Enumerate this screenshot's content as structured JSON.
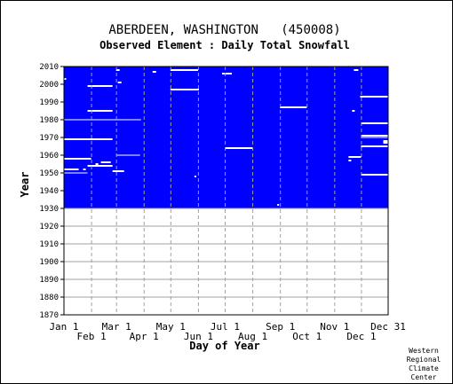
{
  "chart_data": {
    "type": "heatmap",
    "title": "ABERDEEN, WASHINGTON   (450008)",
    "subtitle": "Observed Element : Daily Total Snowfall",
    "xlabel": "Day of Year",
    "ylabel": "Year",
    "xlim": [
      1,
      365
    ],
    "ylim": [
      1870,
      2010
    ],
    "period_of_record": [
      1930,
      2010
    ],
    "colors": {
      "missing": "#ffffff",
      "observed": "#0000ff",
      "grid": "#a0a0a0",
      "frame": "#000000"
    },
    "x_ticks_upper": [
      {
        "label": "Jan 1",
        "day": 1
      },
      {
        "label": "Mar 1",
        "day": 60
      },
      {
        "label": "May 1",
        "day": 121
      },
      {
        "label": "Jul 1",
        "day": 182
      },
      {
        "label": "Sep 1",
        "day": 244
      },
      {
        "label": "Nov 1",
        "day": 305
      },
      {
        "label": "Dec 31",
        "day": 365
      }
    ],
    "x_ticks_lower": [
      {
        "label": "Feb 1",
        "day": 32
      },
      {
        "label": "Apr 1",
        "day": 91
      },
      {
        "label": "Jun 1",
        "day": 152
      },
      {
        "label": "Aug 1",
        "day": 213
      },
      {
        "label": "Oct 1",
        "day": 274
      },
      {
        "label": "Dec 1",
        "day": 335
      }
    ],
    "y_ticks": [
      "2010",
      "2000",
      "1990",
      "1980",
      "1970",
      "1960",
      "1950",
      "1940",
      "1930",
      "1920",
      "1910",
      "1900",
      "1890",
      "1880",
      "1870"
    ],
    "missing_segments": [
      {
        "year": 2008,
        "start": 121,
        "end": 151
      },
      {
        "year": 2008,
        "start": 60,
        "end": 63
      },
      {
        "year": 2008,
        "start": 327,
        "end": 331
      },
      {
        "year": 2007,
        "start": 101,
        "end": 104
      },
      {
        "year": 2006,
        "start": 179,
        "end": 189
      },
      {
        "year": 2003,
        "start": 1,
        "end": 3
      },
      {
        "year": 2001,
        "start": 62,
        "end": 65
      },
      {
        "year": 1999,
        "start": 28,
        "end": 55
      },
      {
        "year": 1997,
        "start": 121,
        "end": 152
      },
      {
        "year": 1993,
        "start": 334,
        "end": 365
      },
      {
        "year": 1987,
        "start": 244,
        "end": 273
      },
      {
        "year": 1985,
        "start": 28,
        "end": 55
      },
      {
        "year": 1985,
        "start": 325,
        "end": 327
      },
      {
        "year": 1980,
        "start": 1,
        "end": 87
      },
      {
        "year": 1978,
        "start": 335,
        "end": 365
      },
      {
        "year": 1971,
        "start": 335,
        "end": 365
      },
      {
        "year": 1970,
        "start": 335,
        "end": 365
      },
      {
        "year": 1969,
        "start": 1,
        "end": 55
      },
      {
        "year": 1968,
        "start": 360,
        "end": 365
      },
      {
        "year": 1967,
        "start": 360,
        "end": 365
      },
      {
        "year": 1965,
        "start": 335,
        "end": 365
      },
      {
        "year": 1964,
        "start": 182,
        "end": 212
      },
      {
        "year": 1960,
        "start": 60,
        "end": 86
      },
      {
        "year": 1959,
        "start": 321,
        "end": 334
      },
      {
        "year": 1958,
        "start": 1,
        "end": 31
      },
      {
        "year": 1957,
        "start": 321,
        "end": 323
      },
      {
        "year": 1956,
        "start": 43,
        "end": 53
      },
      {
        "year": 1955,
        "start": 37,
        "end": 39
      },
      {
        "year": 1954,
        "start": 28,
        "end": 55
      },
      {
        "year": 1952,
        "start": 1,
        "end": 17
      },
      {
        "year": 1952,
        "start": 23,
        "end": 25
      },
      {
        "year": 1951,
        "start": 56,
        "end": 68
      },
      {
        "year": 1950,
        "start": 1,
        "end": 27
      },
      {
        "year": 1949,
        "start": 335,
        "end": 365
      },
      {
        "year": 1948,
        "start": 148,
        "end": 149
      },
      {
        "year": 1932,
        "start": 241,
        "end": 242
      }
    ]
  },
  "credit": [
    "Western",
    "Regional",
    "Climate",
    "Center"
  ]
}
